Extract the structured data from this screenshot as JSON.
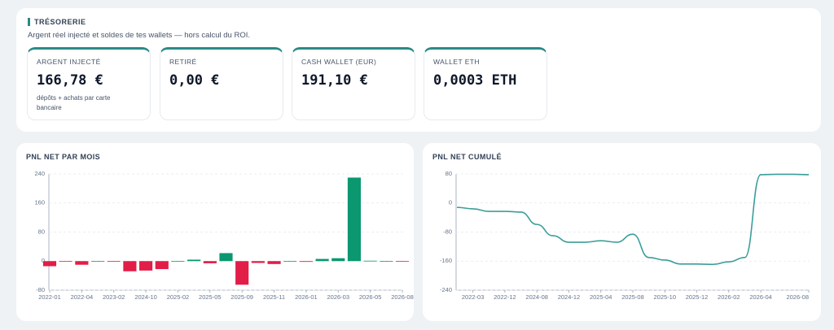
{
  "treasury": {
    "title": "TRÉSORERIE",
    "subtitle": "Argent réel injecté et soldes de tes wallets — hors calcul du ROI.",
    "cards": [
      {
        "label": "ARGENT INJECTÉ",
        "value": "166,78 €",
        "note": "dépôts + achats par carte bancaire"
      },
      {
        "label": "RETIRÉ",
        "value": "0,00 €"
      },
      {
        "label": "CASH WALLET (EUR)",
        "value": "191,10 €"
      },
      {
        "label": "WALLET ETH",
        "value": "0,0003 ETH"
      }
    ]
  },
  "chart_data": [
    {
      "type": "bar",
      "title": "PNL NET PAR MOIS",
      "categories": [
        "2022-01",
        null,
        "2022-04",
        null,
        "2023-02",
        null,
        "2024-10",
        null,
        "2025-02",
        null,
        "2025-05",
        null,
        "2025-09",
        null,
        "2025-11",
        null,
        "2026-01",
        null,
        "2026-03",
        null,
        "2026-05",
        null,
        "2026-08"
      ],
      "values": [
        -14,
        -1,
        -10,
        0,
        -1,
        -28,
        -26,
        -22,
        0,
        4,
        -6,
        22,
        -65,
        -5,
        -8,
        0,
        -2,
        6,
        8,
        230,
        1,
        0,
        -1
      ],
      "positive_color": "#0b9770",
      "negative_color": "#e11d48",
      "ylim": [
        -80,
        240
      ],
      "yticks": [
        -80,
        0,
        80,
        160,
        240
      ],
      "grid": true
    },
    {
      "type": "line",
      "title": "PNL NET CUMULÉ",
      "categories": [
        null,
        "2022-03",
        null,
        "2022-12",
        null,
        "2024-08",
        null,
        "2024-12",
        null,
        "2025-04",
        null,
        "2025-08",
        null,
        "2025-10",
        null,
        "2025-12",
        null,
        "2026-02",
        null,
        "2026-04",
        null,
        null,
        "2026-08"
      ],
      "values": [
        -12,
        -16,
        -23,
        -23,
        -25,
        -59,
        -90,
        -108,
        -108,
        -104,
        -108,
        -86,
        -150,
        -157,
        -168,
        -168,
        -169,
        -162,
        -150,
        78,
        79,
        79,
        78
      ],
      "color": "#3a9e9a",
      "ylim": [
        -240,
        80
      ],
      "yticks": [
        -240,
        -160,
        -80,
        0,
        80
      ],
      "grid": true
    }
  ]
}
